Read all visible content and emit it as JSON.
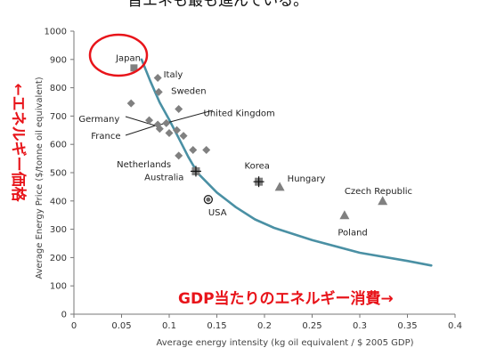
{
  "header_text": "皆エネも最も進んでいる。",
  "chart_data": {
    "type": "scatter",
    "xlabel": "Average energy intensity (kg oil equivalent / $ 2005 GDP)",
    "ylabel": "Average Energy Price ($/tonne oil equivalent)",
    "xlim": [
      0,
      0.4
    ],
    "ylim": [
      0,
      1000
    ],
    "x_ticks": [
      "0",
      "0.05",
      "0.1",
      "0.15",
      "0.2",
      "0.25",
      "0.3",
      "0.35",
      "0.4"
    ],
    "y_ticks": [
      "0",
      "100",
      "200",
      "300",
      "400",
      "500",
      "600",
      "700",
      "800",
      "900",
      "1000"
    ],
    "grid": false,
    "annotation_y": "←エネルギー価格",
    "annotation_x": "GDP当たりのエネルギー消費→",
    "colors": {
      "curve": "#4a90a4",
      "diamond": "#808080",
      "triangle": "#808080",
      "square": "#808080",
      "circle_highlight": "#e8141a",
      "annotation": "#e8141a"
    },
    "labels": [
      {
        "text": "Japan",
        "x": 0.044,
        "y": 905
      },
      {
        "text": "Italy",
        "x": 0.094,
        "y": 848
      },
      {
        "text": "Sweden",
        "x": 0.102,
        "y": 790
      },
      {
        "text": "Germany",
        "x": 0.005,
        "y": 691
      },
      {
        "text": "United Kingdom",
        "x": 0.136,
        "y": 710
      },
      {
        "text": "France",
        "x": 0.018,
        "y": 631
      },
      {
        "text": "Netherlands",
        "x": 0.045,
        "y": 530
      },
      {
        "text": "Australia",
        "x": 0.074,
        "y": 485
      },
      {
        "text": "Korea",
        "x": 0.179,
        "y": 525
      },
      {
        "text": "Hungary",
        "x": 0.224,
        "y": 480
      },
      {
        "text": "Czech Republic",
        "x": 0.284,
        "y": 435
      },
      {
        "text": "USA",
        "x": 0.141,
        "y": 360
      },
      {
        "text": "Poland",
        "x": 0.277,
        "y": 290
      }
    ],
    "points": [
      {
        "x": 0.063,
        "y": 870,
        "shape": "square"
      },
      {
        "x": 0.088,
        "y": 835,
        "shape": "diamond"
      },
      {
        "x": 0.089,
        "y": 785,
        "shape": "diamond"
      },
      {
        "x": 0.06,
        "y": 745,
        "shape": "diamond"
      },
      {
        "x": 0.11,
        "y": 725,
        "shape": "diamond"
      },
      {
        "x": 0.079,
        "y": 685,
        "shape": "diamond"
      },
      {
        "x": 0.088,
        "y": 670,
        "shape": "diamond"
      },
      {
        "x": 0.097,
        "y": 675,
        "shape": "diamond"
      },
      {
        "x": 0.09,
        "y": 655,
        "shape": "diamond"
      },
      {
        "x": 0.108,
        "y": 650,
        "shape": "diamond"
      },
      {
        "x": 0.1,
        "y": 640,
        "shape": "diamond"
      },
      {
        "x": 0.115,
        "y": 630,
        "shape": "diamond"
      },
      {
        "x": 0.125,
        "y": 580,
        "shape": "diamond"
      },
      {
        "x": 0.139,
        "y": 580,
        "shape": "diamond"
      },
      {
        "x": 0.11,
        "y": 560,
        "shape": "diamond"
      },
      {
        "x": 0.128,
        "y": 505,
        "shape": "square_cross"
      },
      {
        "x": 0.194,
        "y": 468,
        "shape": "square_cross"
      },
      {
        "x": 0.216,
        "y": 450,
        "shape": "triangle"
      },
      {
        "x": 0.324,
        "y": 400,
        "shape": "triangle"
      },
      {
        "x": 0.284,
        "y": 350,
        "shape": "triangle"
      },
      {
        "x": 0.141,
        "y": 405,
        "shape": "circle"
      }
    ],
    "series": [
      {
        "type": "curve",
        "x": [
          0.071,
          0.08,
          0.09,
          0.1,
          0.11,
          0.12,
          0.13,
          0.15,
          0.17,
          0.19,
          0.21,
          0.25,
          0.3,
          0.35,
          0.375
        ],
        "y": [
          900,
          825,
          748,
          687,
          622,
          556,
          498,
          430,
          378,
          335,
          305,
          262,
          217,
          188,
          172
        ]
      }
    ]
  }
}
